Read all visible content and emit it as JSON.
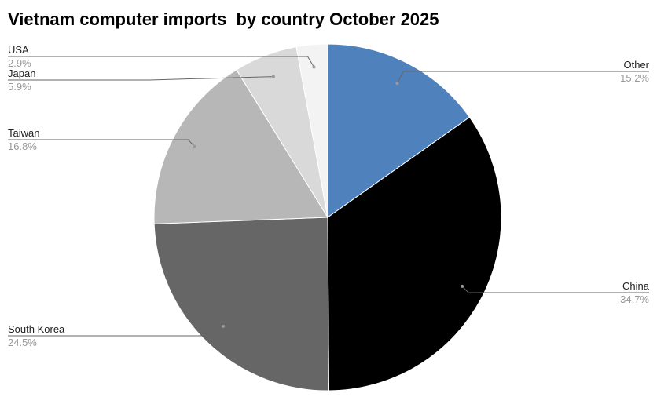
{
  "chart_data": {
    "type": "pie",
    "title": "Vietnam computer imports  by country October 2025",
    "slices": [
      {
        "label": "Other",
        "value": 15.2,
        "display": "15.2%",
        "color": "#4f81bd"
      },
      {
        "label": "China",
        "value": 34.7,
        "display": "34.7%",
        "color": "#000000"
      },
      {
        "label": "South Korea",
        "value": 24.5,
        "display": "24.5%",
        "color": "#666666"
      },
      {
        "label": "Taiwan",
        "value": 16.8,
        "display": "16.8%",
        "color": "#b7b7b7"
      },
      {
        "label": "Japan",
        "value": 5.9,
        "display": "5.9%",
        "color": "#d9d9d9"
      },
      {
        "label": "USA",
        "value": 2.9,
        "display": "2.9%",
        "color": "#f3f3f3"
      }
    ],
    "start_angle": "top",
    "direction": "clockwise",
    "legend": "none"
  }
}
